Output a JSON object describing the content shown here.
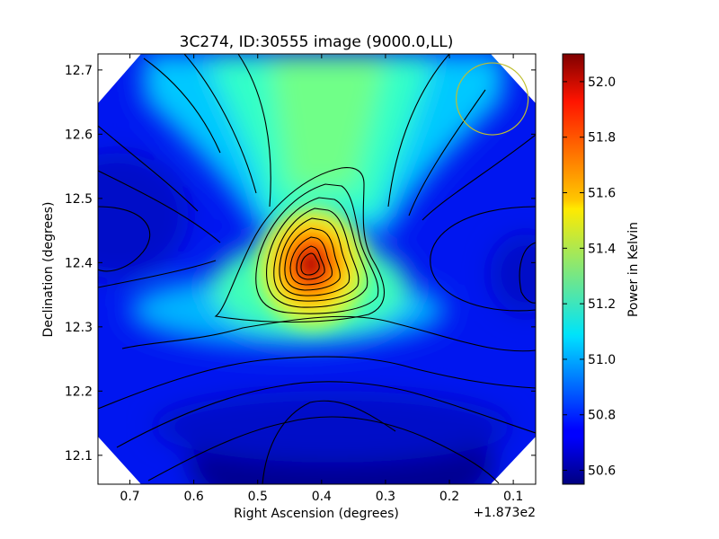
{
  "chart_data": {
    "type": "heatmap",
    "title": "3C274, ID:30555 image (9000.0,LL)",
    "xlabel": "Right Ascension (degrees)",
    "ylabel": "Declination (degrees)",
    "x_offset_label": "+1.873e2",
    "xlim": [
      0.75,
      0.065
    ],
    "ylim": [
      12.055,
      12.725
    ],
    "x_ticks": [
      {
        "value": 0.7,
        "label": "0.7"
      },
      {
        "value": 0.6,
        "label": "0.6"
      },
      {
        "value": 0.5,
        "label": "0.5"
      },
      {
        "value": 0.4,
        "label": "0.4"
      },
      {
        "value": 0.3,
        "label": "0.3"
      },
      {
        "value": 0.2,
        "label": "0.2"
      },
      {
        "value": 0.1,
        "label": "0.1"
      }
    ],
    "y_ticks": [
      {
        "value": 12.1,
        "label": "12.1"
      },
      {
        "value": 12.2,
        "label": "12.2"
      },
      {
        "value": 12.3,
        "label": "12.3"
      },
      {
        "value": 12.4,
        "label": "12.4"
      },
      {
        "value": 12.5,
        "label": "12.5"
      },
      {
        "value": 12.6,
        "label": "12.6"
      },
      {
        "value": 12.7,
        "label": "12.7"
      }
    ],
    "colorbar": {
      "label": "Power in Kelvin",
      "range": [
        50.55,
        52.1
      ],
      "ticks": [
        {
          "value": 50.6,
          "label": "50.6"
        },
        {
          "value": 50.8,
          "label": "50.8"
        },
        {
          "value": 51.0,
          "label": "51.0"
        },
        {
          "value": 51.2,
          "label": "51.2"
        },
        {
          "value": 51.4,
          "label": "51.4"
        },
        {
          "value": 51.6,
          "label": "51.6"
        },
        {
          "value": 51.8,
          "label": "51.8"
        },
        {
          "value": 52.0,
          "label": "52.0"
        }
      ],
      "colormap": "jet"
    },
    "peak": {
      "ra": 0.41,
      "dec": 12.395,
      "value": 52.1
    },
    "beam_circle": {
      "ra": 0.133,
      "dec": 12.655,
      "color": "#bfbf30"
    },
    "contours": true,
    "grid": false
  }
}
